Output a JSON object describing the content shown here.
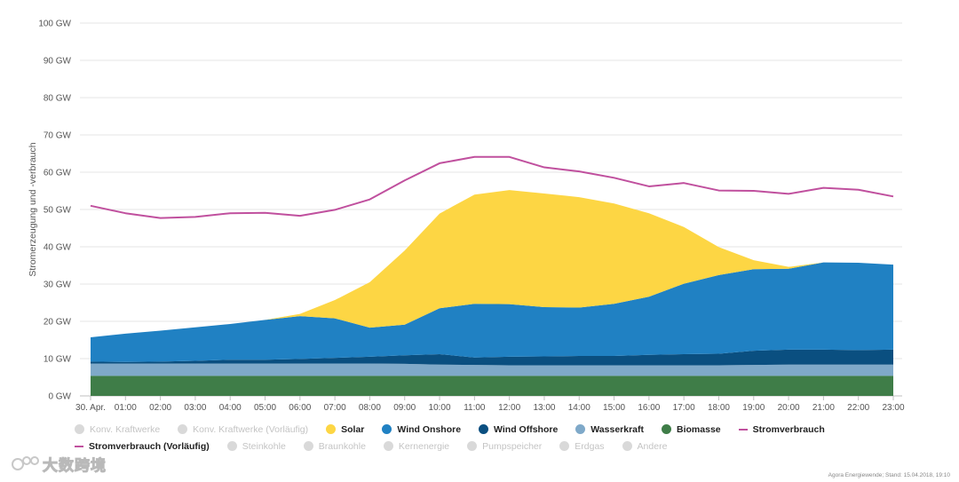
{
  "chart_data": {
    "type": "area",
    "stacked": true,
    "ylabel": "Stromerzeugung und -verbrauch",
    "ylim": [
      0,
      100
    ],
    "y_ticks": [
      "0 GW",
      "10 GW",
      "20 GW",
      "30 GW",
      "40 GW",
      "50 GW",
      "60 GW",
      "70 GW",
      "80 GW",
      "90 GW",
      "100 GW"
    ],
    "grid": true,
    "x_ticks": [
      "30. Apr.",
      "01:00",
      "02:00",
      "03:00",
      "04:00",
      "05:00",
      "06:00",
      "07:00",
      "08:00",
      "09:00",
      "10:00",
      "11:00",
      "12:00",
      "13:00",
      "14:00",
      "15:00",
      "16:00",
      "17:00",
      "18:00",
      "19:00",
      "20:00",
      "21:00",
      "22:00",
      "23:00"
    ],
    "series": [
      {
        "name": "Biomasse",
        "color": "#3f7d48",
        "values": [
          5.4,
          5.4,
          5.4,
          5.4,
          5.4,
          5.4,
          5.4,
          5.4,
          5.4,
          5.4,
          5.4,
          5.4,
          5.4,
          5.4,
          5.4,
          5.4,
          5.4,
          5.4,
          5.4,
          5.4,
          5.4,
          5.4,
          5.4,
          5.4
        ]
      },
      {
        "name": "Wasserkraft",
        "color": "#7fa9c9",
        "values": [
          3.3,
          3.3,
          3.3,
          3.3,
          3.3,
          3.3,
          3.3,
          3.3,
          3.3,
          3.2,
          3.0,
          2.9,
          2.8,
          2.8,
          2.8,
          2.8,
          2.8,
          2.8,
          2.8,
          2.9,
          3.0,
          3.0,
          3.0,
          3.0
        ]
      },
      {
        "name": "Wind Offshore",
        "color": "#0a4f80",
        "values": [
          0.5,
          0.4,
          0.5,
          0.7,
          1.0,
          1.0,
          1.2,
          1.5,
          1.8,
          2.3,
          2.8,
          2.0,
          2.3,
          2.4,
          2.5,
          2.5,
          2.8,
          3.0,
          3.1,
          3.8,
          4.0,
          4.0,
          3.9,
          4.0
        ]
      },
      {
        "name": "Wind Onshore",
        "color": "#2081c3",
        "values": [
          6.5,
          7.6,
          8.3,
          9.0,
          9.6,
          10.7,
          11.5,
          10.6,
          7.8,
          8.2,
          12.3,
          14.4,
          14.1,
          13.2,
          13.0,
          14.0,
          15.6,
          18.9,
          21.1,
          21.9,
          21.7,
          23.4,
          23.4,
          22.8
        ]
      },
      {
        "name": "Solar",
        "color": "#fdd644",
        "values": [
          0,
          0,
          0,
          0,
          0,
          0,
          0.6,
          4.9,
          12.2,
          19.9,
          25.4,
          29.3,
          30.6,
          30.5,
          29.6,
          26.9,
          22.4,
          15.2,
          7.5,
          2.4,
          0.5,
          0,
          0,
          0
        ]
      }
    ],
    "line_series": [
      {
        "name": "Stromverbrauch",
        "color": "#c0509e",
        "values": [
          51.0,
          49.0,
          47.7,
          48.0,
          49.0,
          49.1,
          48.3,
          49.9,
          52.7,
          57.8,
          62.4,
          64.1,
          64.1,
          61.3,
          60.2,
          58.5,
          56.2,
          57.1,
          55.1,
          55.0,
          54.2,
          55.8,
          55.3,
          53.5
        ]
      }
    ],
    "legend": {
      "placement": "bottom-left",
      "row1": [
        {
          "label": "Konv. Kraftwerke",
          "color": "#d9d9d9",
          "active": false,
          "marker": "dot"
        },
        {
          "label": "Konv. Kraftwerke (Vorläufig)",
          "color": "#d9d9d9",
          "active": false,
          "marker": "dot"
        },
        {
          "label": "Solar",
          "color": "#fdd644",
          "active": true,
          "marker": "dot"
        },
        {
          "label": "Wind Onshore",
          "color": "#2081c3",
          "active": true,
          "marker": "dot"
        },
        {
          "label": "Wind Offshore",
          "color": "#0a4f80",
          "active": true,
          "marker": "dot"
        },
        {
          "label": "Wasserkraft",
          "color": "#7fa9c9",
          "active": true,
          "marker": "dot"
        },
        {
          "label": "Biomasse",
          "color": "#3f7d48",
          "active": true,
          "marker": "dot"
        },
        {
          "label": "Stromverbrauch",
          "color": "#c0509e",
          "active": true,
          "marker": "line"
        }
      ],
      "row2": [
        {
          "label": "Stromverbrauch (Vorläufig)",
          "color": "#c0509e",
          "active": true,
          "marker": "dash"
        },
        {
          "label": "Steinkohle",
          "color": "#d9d9d9",
          "active": false,
          "marker": "dot"
        },
        {
          "label": "Braunkohle",
          "color": "#d9d9d9",
          "active": false,
          "marker": "dot"
        },
        {
          "label": "Kernenergie",
          "color": "#d9d9d9",
          "active": false,
          "marker": "dot"
        },
        {
          "label": "Pumpspeicher",
          "color": "#d9d9d9",
          "active": false,
          "marker": "dot"
        },
        {
          "label": "Erdgas",
          "color": "#d9d9d9",
          "active": false,
          "marker": "dot"
        },
        {
          "label": "Andere",
          "color": "#d9d9d9",
          "active": false,
          "marker": "dot"
        }
      ]
    }
  },
  "source_text": "Agora Energiewende; Stand: 15.04.2018, 19:10",
  "watermark_text": "大数跨境"
}
